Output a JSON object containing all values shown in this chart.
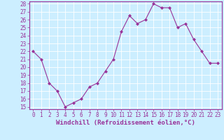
{
  "x": [
    0,
    1,
    2,
    3,
    4,
    5,
    6,
    7,
    8,
    9,
    10,
    11,
    12,
    13,
    14,
    15,
    16,
    17,
    18,
    19,
    20,
    21,
    22,
    23
  ],
  "y": [
    22,
    21,
    18,
    17,
    15,
    15.5,
    16,
    17.5,
    18,
    19.5,
    21,
    24.5,
    26.5,
    25.5,
    26,
    28,
    27.5,
    27.5,
    25,
    25.5,
    23.5,
    22,
    20.5,
    20.5
  ],
  "line_color": "#993399",
  "marker": "D",
  "marker_size": 2,
  "bg_color": "#cceeff",
  "grid_color": "#ffffff",
  "xlabel": "Windchill (Refroidissement éolien,°C)",
  "xlabel_color": "#993399",
  "ylim": [
    15,
    28
  ],
  "yticks": [
    15,
    16,
    17,
    18,
    19,
    20,
    21,
    22,
    23,
    24,
    25,
    26,
    27,
    28
  ],
  "xticks": [
    0,
    1,
    2,
    3,
    4,
    5,
    6,
    7,
    8,
    9,
    10,
    11,
    12,
    13,
    14,
    15,
    16,
    17,
    18,
    19,
    20,
    21,
    22,
    23
  ],
  "tick_color": "#993399",
  "tick_fontsize": 5.5,
  "xlabel_fontsize": 6.5,
  "xlabel_fontweight": "bold",
  "spine_color": "#993399"
}
